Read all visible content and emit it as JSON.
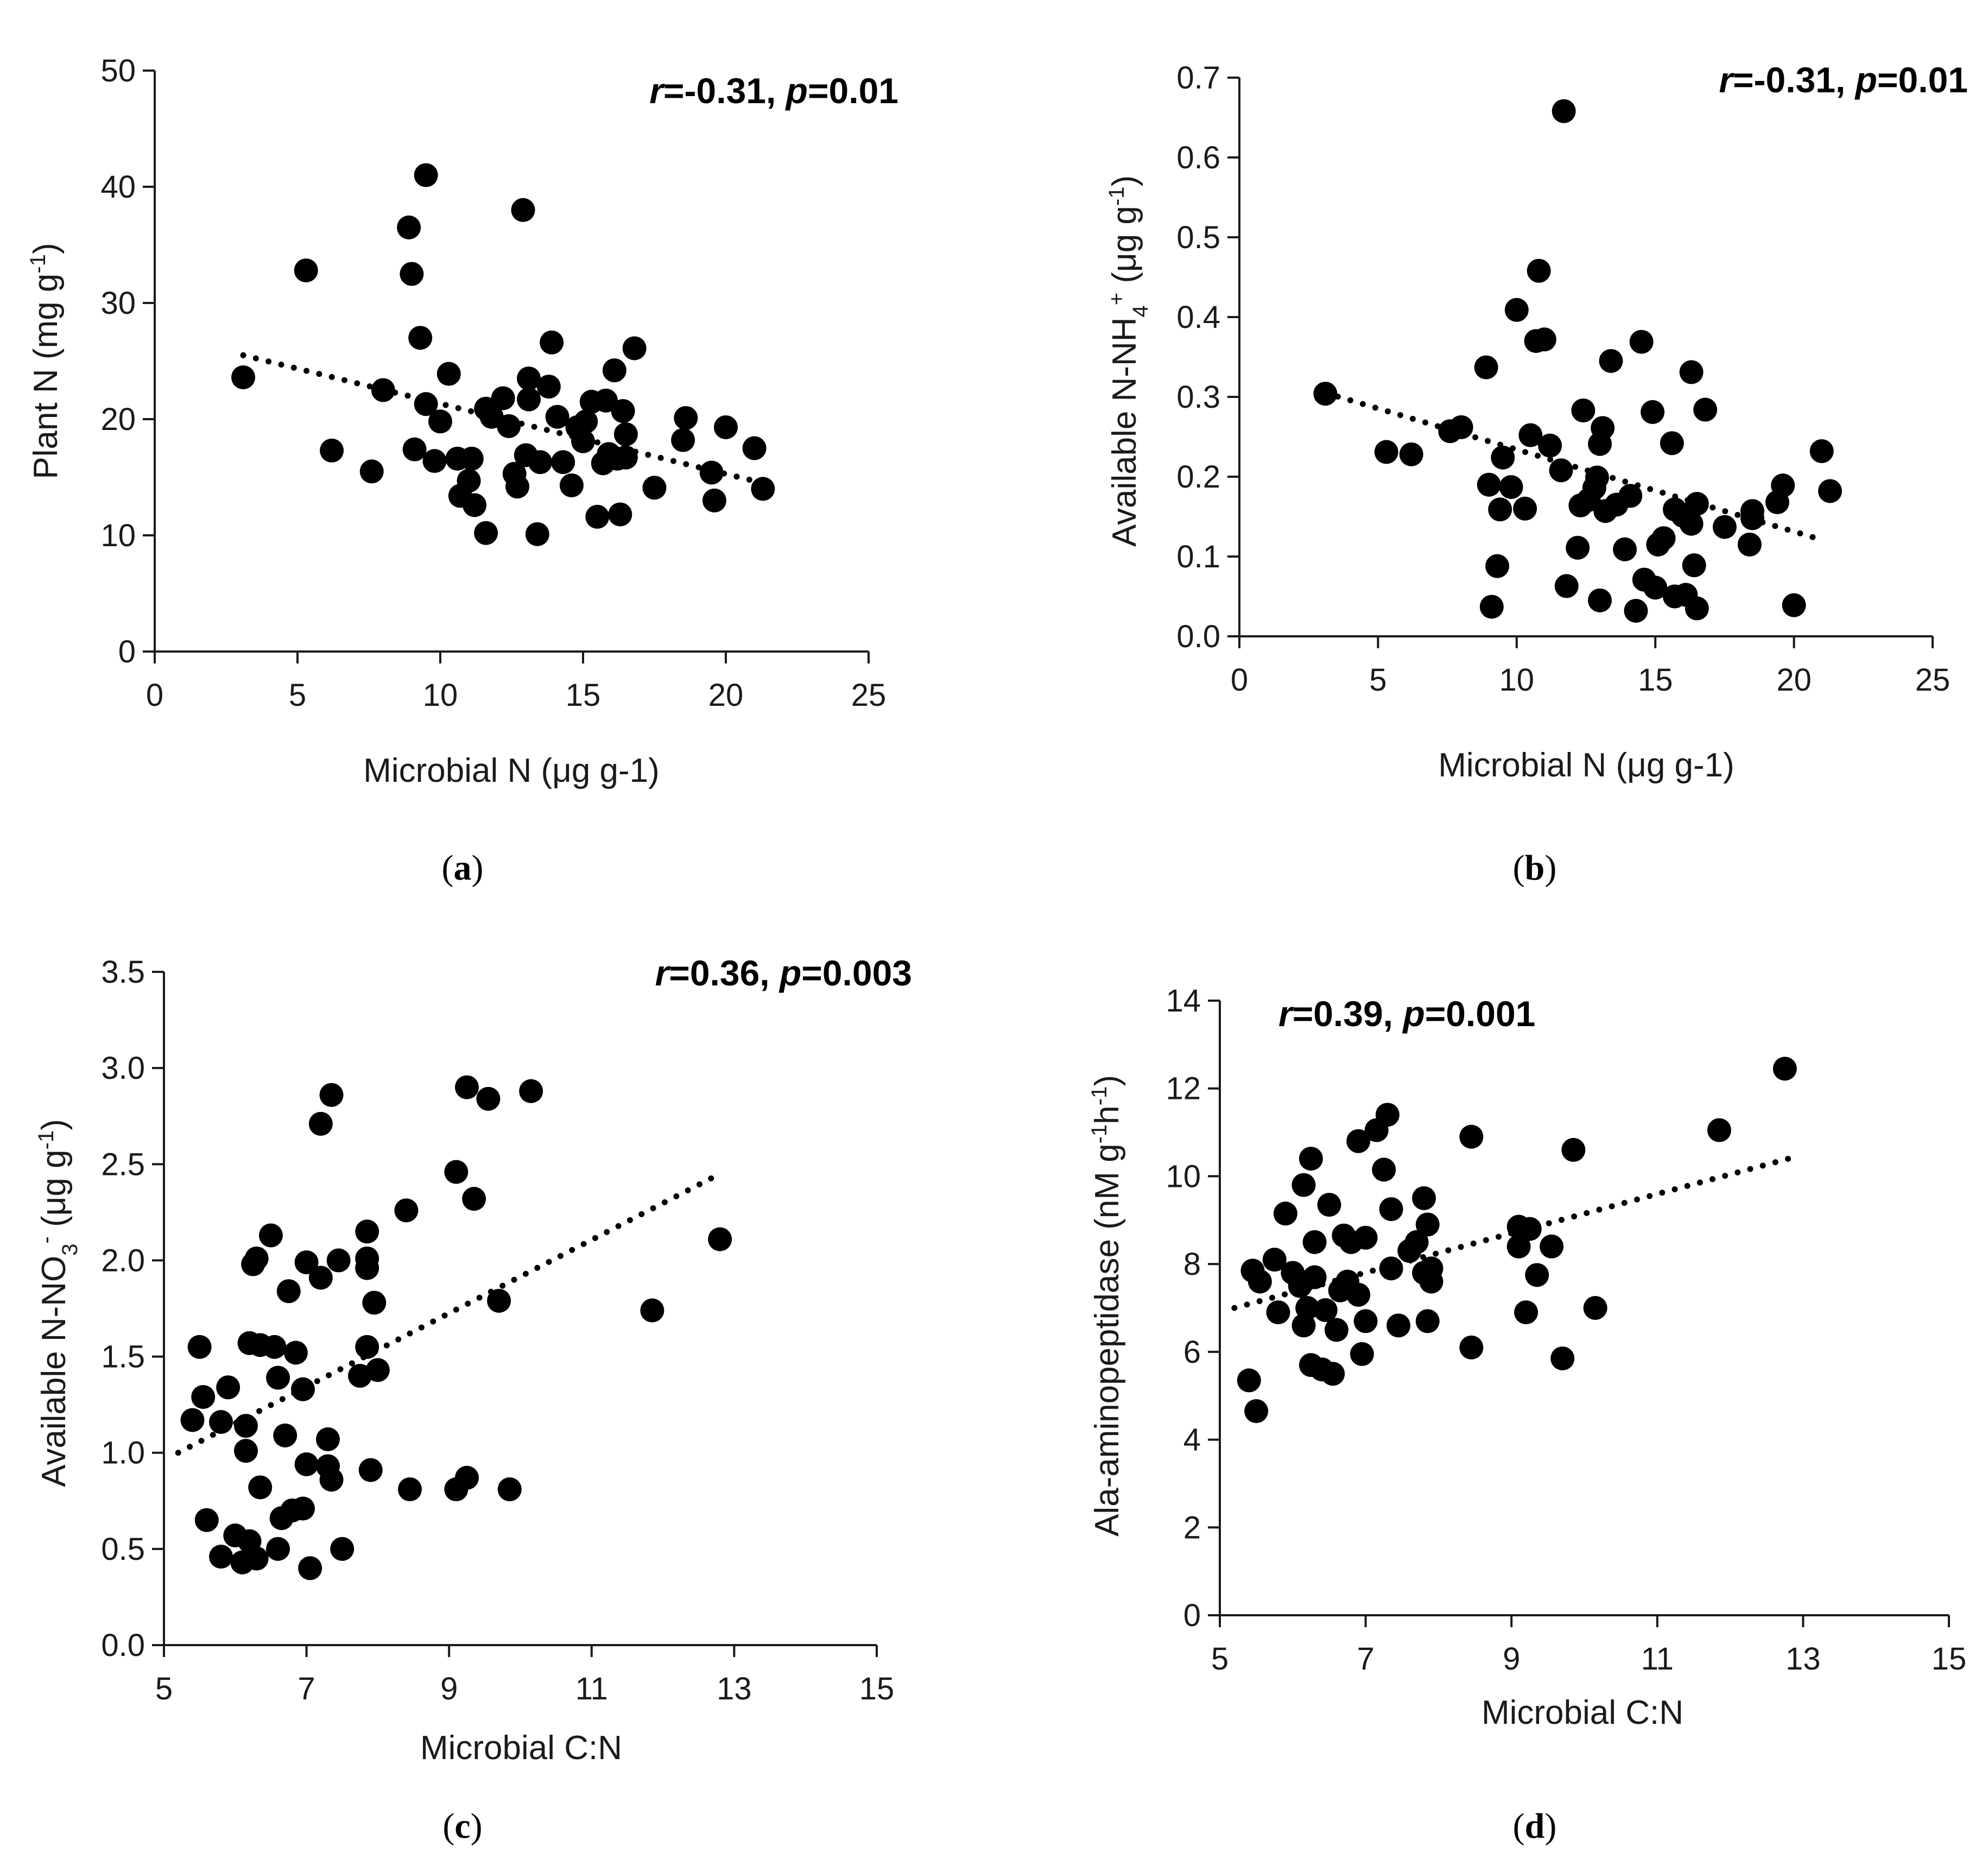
{
  "chart_data": [
    {
      "type": "scatter",
      "caption": "a",
      "xlabel": "Microbial N (μg g-1)",
      "ylabel": "Plant N (mg g<sup>-1</sup>)",
      "xlim": [
        0,
        25
      ],
      "ylim": [
        0,
        50
      ],
      "xticks": [
        "0",
        "5",
        "10",
        "15",
        "20",
        "25"
      ],
      "yticks": [
        "0",
        "10",
        "20",
        "30",
        "40",
        "50"
      ],
      "stat": {
        "r": "=-0.31, ",
        "p": "=0.01"
      },
      "trend": {
        "x": [
          3.1,
          21.3
        ],
        "y": [
          25.5,
          14.5
        ]
      },
      "points": [
        [
          3.1,
          23.6
        ],
        [
          5.3,
          32.8
        ],
        [
          6.2,
          17.3
        ],
        [
          7.6,
          15.5
        ],
        [
          8.0,
          22.5
        ],
        [
          8.9,
          36.5
        ],
        [
          9.0,
          32.5
        ],
        [
          9.1,
          17.4
        ],
        [
          9.3,
          27.0
        ],
        [
          9.5,
          41.0
        ],
        [
          9.5,
          21.3
        ],
        [
          9.8,
          16.4
        ],
        [
          10.0,
          19.8
        ],
        [
          10.3,
          23.9
        ],
        [
          10.6,
          16.6
        ],
        [
          10.7,
          13.4
        ],
        [
          11.0,
          14.7
        ],
        [
          11.1,
          16.6
        ],
        [
          11.2,
          12.6
        ],
        [
          11.6,
          10.2
        ],
        [
          11.6,
          20.9
        ],
        [
          11.8,
          20.2
        ],
        [
          12.2,
          21.8
        ],
        [
          12.4,
          19.4
        ],
        [
          12.6,
          15.3
        ],
        [
          12.7,
          14.2
        ],
        [
          12.9,
          38.0
        ],
        [
          13.0,
          16.9
        ],
        [
          13.1,
          23.5
        ],
        [
          13.1,
          21.7
        ],
        [
          13.4,
          10.1
        ],
        [
          13.5,
          16.3
        ],
        [
          13.8,
          22.8
        ],
        [
          13.9,
          26.6
        ],
        [
          14.1,
          20.2
        ],
        [
          14.3,
          16.3
        ],
        [
          14.6,
          14.3
        ],
        [
          14.8,
          19.3
        ],
        [
          15.0,
          18.1
        ],
        [
          15.1,
          19.8
        ],
        [
          15.3,
          21.5
        ],
        [
          15.5,
          11.6
        ],
        [
          15.7,
          16.2
        ],
        [
          15.8,
          21.6
        ],
        [
          15.9,
          17.0
        ],
        [
          16.1,
          24.2
        ],
        [
          16.2,
          16.6
        ],
        [
          16.3,
          11.8
        ],
        [
          16.4,
          20.7
        ],
        [
          16.5,
          18.7
        ],
        [
          16.5,
          16.7
        ],
        [
          16.8,
          26.1
        ],
        [
          17.5,
          14.1
        ],
        [
          18.5,
          18.2
        ],
        [
          18.6,
          20.1
        ],
        [
          19.5,
          15.4
        ],
        [
          19.6,
          13.0
        ],
        [
          20.0,
          19.3
        ],
        [
          21.0,
          17.5
        ],
        [
          21.3,
          14.0
        ]
      ]
    },
    {
      "type": "scatter",
      "caption": "b",
      "xlabel": "Microbial N (μg g-1)",
      "ylabel": "Available N-NH<sub>4</sub><sup>+</sup> (μg g<sup>-1</sup>)",
      "xlim": [
        0,
        25
      ],
      "ylim": [
        0,
        0.7
      ],
      "xticks": [
        "0",
        "5",
        "10",
        "15",
        "20",
        "25"
      ],
      "yticks": [
        "0.0",
        "0.1",
        "0.2",
        "0.3",
        "0.4",
        "0.5",
        "0.6",
        "0.7"
      ],
      "stat": {
        "r": "=-0.31, ",
        "p": "=0.01"
      },
      "trend": {
        "x": [
          3.1,
          20.8
        ],
        "y": [
          0.305,
          0.123
        ]
      },
      "points": [
        [
          3.1,
          0.304
        ],
        [
          5.3,
          0.231
        ],
        [
          6.2,
          0.228
        ],
        [
          7.6,
          0.257
        ],
        [
          8.0,
          0.262
        ],
        [
          8.9,
          0.337
        ],
        [
          9.0,
          0.19
        ],
        [
          9.1,
          0.037
        ],
        [
          9.3,
          0.088
        ],
        [
          9.4,
          0.159
        ],
        [
          9.5,
          0.224
        ],
        [
          9.8,
          0.187
        ],
        [
          10.0,
          0.409
        ],
        [
          10.3,
          0.16
        ],
        [
          10.5,
          0.252
        ],
        [
          10.7,
          0.37
        ],
        [
          10.8,
          0.458
        ],
        [
          11.0,
          0.372
        ],
        [
          11.2,
          0.239
        ],
        [
          11.6,
          0.208
        ],
        [
          11.7,
          0.658
        ],
        [
          11.8,
          0.063
        ],
        [
          12.2,
          0.111
        ],
        [
          12.3,
          0.164
        ],
        [
          12.4,
          0.283
        ],
        [
          12.6,
          0.171
        ],
        [
          12.8,
          0.186
        ],
        [
          12.9,
          0.199
        ],
        [
          13.0,
          0.045
        ],
        [
          13.0,
          0.241
        ],
        [
          13.1,
          0.261
        ],
        [
          13.2,
          0.157
        ],
        [
          13.4,
          0.345
        ],
        [
          13.6,
          0.165
        ],
        [
          13.9,
          0.109
        ],
        [
          14.1,
          0.176
        ],
        [
          14.3,
          0.032
        ],
        [
          14.5,
          0.369
        ],
        [
          14.6,
          0.071
        ],
        [
          14.9,
          0.281
        ],
        [
          15.0,
          0.061
        ],
        [
          15.1,
          0.115
        ],
        [
          15.3,
          0.123
        ],
        [
          15.6,
          0.242
        ],
        [
          15.7,
          0.159
        ],
        [
          15.7,
          0.05
        ],
        [
          16.0,
          0.151
        ],
        [
          16.1,
          0.052
        ],
        [
          16.3,
          0.141
        ],
        [
          16.3,
          0.331
        ],
        [
          16.4,
          0.089
        ],
        [
          16.5,
          0.035
        ],
        [
          16.5,
          0.166
        ],
        [
          16.8,
          0.284
        ],
        [
          17.5,
          0.137
        ],
        [
          18.4,
          0.115
        ],
        [
          18.5,
          0.157
        ],
        [
          18.5,
          0.148
        ],
        [
          19.4,
          0.168
        ],
        [
          19.6,
          0.189
        ],
        [
          20.0,
          0.039
        ],
        [
          21.0,
          0.232
        ],
        [
          21.3,
          0.182
        ]
      ]
    },
    {
      "type": "scatter",
      "caption": "c",
      "xlabel": "Microbial C:N",
      "ylabel": "Available N-NO<sub>3</sub><sup>-</sup> (μg g<sup>-1</sup>)",
      "xlim": [
        5,
        15
      ],
      "ylim": [
        0,
        3.5
      ],
      "xticks": [
        "5",
        "7",
        "9",
        "11",
        "13",
        "15"
      ],
      "yticks": [
        "0.0",
        "0.5",
        "1.0",
        "1.5",
        "2.0",
        "2.5",
        "3.0",
        "3.5"
      ],
      "stat": {
        "r": "=0.36, ",
        "p": "=0.003"
      },
      "trend": {
        "x": [
          5.2,
          12.8
        ],
        "y": [
          1.0,
          2.45
        ]
      },
      "points": [
        [
          5.4,
          1.17
        ],
        [
          5.5,
          1.55
        ],
        [
          5.55,
          1.29
        ],
        [
          5.6,
          0.65
        ],
        [
          5.8,
          1.16
        ],
        [
          5.8,
          0.46
        ],
        [
          5.9,
          1.34
        ],
        [
          6.0,
          0.57
        ],
        [
          6.1,
          0.43
        ],
        [
          6.15,
          1.01
        ],
        [
          6.15,
          1.14
        ],
        [
          6.2,
          1.57
        ],
        [
          6.2,
          0.54
        ],
        [
          6.25,
          1.98
        ],
        [
          6.3,
          2.01
        ],
        [
          6.3,
          0.45
        ],
        [
          6.35,
          1.56
        ],
        [
          6.35,
          0.82
        ],
        [
          6.5,
          2.13
        ],
        [
          6.55,
          1.55
        ],
        [
          6.6,
          1.39
        ],
        [
          6.6,
          0.5
        ],
        [
          6.65,
          0.66
        ],
        [
          6.7,
          1.09
        ],
        [
          6.75,
          1.84
        ],
        [
          6.8,
          0.7
        ],
        [
          6.85,
          1.52
        ],
        [
          6.95,
          1.33
        ],
        [
          6.95,
          0.71
        ],
        [
          7.0,
          0.94
        ],
        [
          7.0,
          1.99
        ],
        [
          7.05,
          0.4
        ],
        [
          7.2,
          2.71
        ],
        [
          7.2,
          1.91
        ],
        [
          7.3,
          1.07
        ],
        [
          7.3,
          0.93
        ],
        [
          7.35,
          0.86
        ],
        [
          7.35,
          2.86
        ],
        [
          7.45,
          2.0
        ],
        [
          7.5,
          0.5
        ],
        [
          7.75,
          1.4
        ],
        [
          7.85,
          2.15
        ],
        [
          7.85,
          1.96
        ],
        [
          7.85,
          2.01
        ],
        [
          7.85,
          1.55
        ],
        [
          7.9,
          0.91
        ],
        [
          7.95,
          1.78
        ],
        [
          8.0,
          1.43
        ],
        [
          8.4,
          2.26
        ],
        [
          8.45,
          0.81
        ],
        [
          9.1,
          2.46
        ],
        [
          9.1,
          0.81
        ],
        [
          9.25,
          0.87
        ],
        [
          9.25,
          2.9
        ],
        [
          9.35,
          2.32
        ],
        [
          9.55,
          2.84
        ],
        [
          9.7,
          1.79
        ],
        [
          9.85,
          0.81
        ],
        [
          10.15,
          2.88
        ],
        [
          11.85,
          1.74
        ],
        [
          12.8,
          2.11
        ]
      ]
    },
    {
      "type": "scatter",
      "caption": "d",
      "xlabel": "Microbial C:N",
      "ylabel": "Ala-aminopeptidase (nM g<sup>-1</sup>h<sup>-1</sup>)",
      "xlim": [
        5,
        15
      ],
      "ylim": [
        0,
        14
      ],
      "xticks": [
        "5",
        "7",
        "9",
        "11",
        "13",
        "15"
      ],
      "yticks": [
        "0",
        "2",
        "4",
        "6",
        "8",
        "10",
        "12",
        "14"
      ],
      "stat": {
        "r": "=0.39, ",
        "p": "=0.001"
      },
      "trend": {
        "x": [
          5.2,
          12.8
        ],
        "y": [
          7.0,
          10.4
        ]
      },
      "points": [
        [
          5.4,
          5.35
        ],
        [
          5.45,
          7.85
        ],
        [
          5.5,
          4.65
        ],
        [
          5.55,
          7.6
        ],
        [
          5.75,
          8.1
        ],
        [
          5.8,
          6.9
        ],
        [
          5.9,
          9.15
        ],
        [
          6.0,
          7.8
        ],
        [
          6.1,
          7.5
        ],
        [
          6.15,
          9.8
        ],
        [
          6.15,
          6.6
        ],
        [
          6.2,
          7.0
        ],
        [
          6.25,
          10.4
        ],
        [
          6.25,
          5.7
        ],
        [
          6.3,
          7.7
        ],
        [
          6.3,
          8.5
        ],
        [
          6.4,
          5.6
        ],
        [
          6.45,
          6.95
        ],
        [
          6.5,
          9.35
        ],
        [
          6.55,
          5.5
        ],
        [
          6.6,
          6.5
        ],
        [
          6.65,
          7.4
        ],
        [
          6.7,
          8.65
        ],
        [
          6.75,
          7.6
        ],
        [
          6.8,
          8.5
        ],
        [
          6.9,
          10.8
        ],
        [
          6.9,
          7.3
        ],
        [
          6.95,
          5.95
        ],
        [
          7.0,
          8.6
        ],
        [
          7.0,
          6.7
        ],
        [
          7.15,
          11.05
        ],
        [
          7.25,
          10.15
        ],
        [
          7.3,
          11.4
        ],
        [
          7.35,
          9.25
        ],
        [
          7.35,
          7.9
        ],
        [
          7.45,
          6.6
        ],
        [
          7.6,
          8.3
        ],
        [
          7.7,
          8.5
        ],
        [
          7.8,
          7.8
        ],
        [
          7.8,
          9.5
        ],
        [
          7.85,
          8.9
        ],
        [
          7.85,
          6.7
        ],
        [
          7.9,
          7.6
        ],
        [
          7.9,
          7.9
        ],
        [
          8.45,
          10.9
        ],
        [
          8.45,
          6.1
        ],
        [
          9.1,
          8.4
        ],
        [
          9.1,
          8.85
        ],
        [
          9.2,
          6.9
        ],
        [
          9.25,
          8.8
        ],
        [
          9.35,
          7.75
        ],
        [
          9.55,
          8.4
        ],
        [
          9.7,
          5.85
        ],
        [
          9.85,
          10.6
        ],
        [
          10.15,
          7.0
        ],
        [
          11.85,
          11.05
        ],
        [
          12.75,
          12.45
        ]
      ]
    }
  ]
}
